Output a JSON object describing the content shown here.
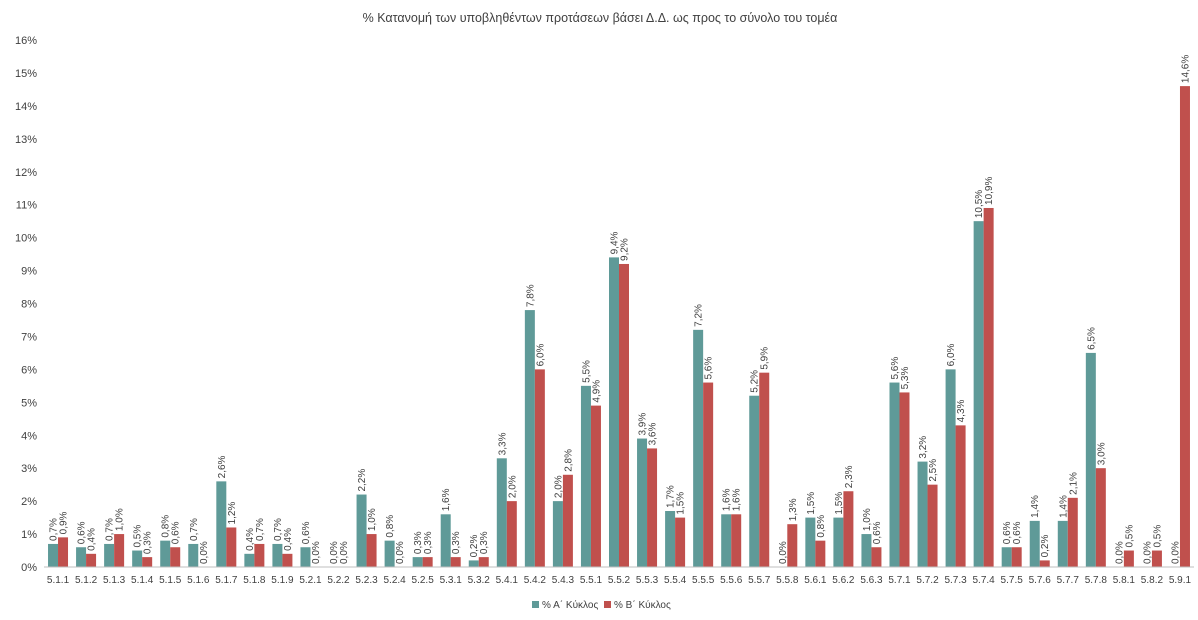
{
  "chart_data": {
    "type": "bar",
    "title": "% Κατανομή των υποβληθέντων προτάσεων βάσει Δ.Δ. ως προς το σύνολο του τομέα",
    "xlabel": "",
    "ylabel": "",
    "ylim": [
      0,
      16
    ],
    "yticks": [
      "0%",
      "1%",
      "2%",
      "3%",
      "4%",
      "5%",
      "6%",
      "7%",
      "8%",
      "9%",
      "10%",
      "11%",
      "12%",
      "13%",
      "14%",
      "15%",
      "16%"
    ],
    "grid": false,
    "legend_position": "bottom",
    "categories": [
      "5.1.1",
      "5.1.2",
      "5.1.3",
      "5.1.4",
      "5.1.5",
      "5.1.6",
      "5.1.7",
      "5.1.8",
      "5.1.9",
      "5.2.1",
      "5.2.2",
      "5.2.3",
      "5.2.4",
      "5.2.5",
      "5.3.1",
      "5.3.2",
      "5.4.1",
      "5.4.2",
      "5.4.3",
      "5.5.1",
      "5.5.2",
      "5.5.3",
      "5.5.4",
      "5.5.5",
      "5.5.6",
      "5.5.7",
      "5.5.8",
      "5.6.1",
      "5.6.2",
      "5.6.3",
      "5.7.1",
      "5.7.2",
      "5.7.3",
      "5.7.4",
      "5.7.5",
      "5.7.6",
      "5.7.7",
      "5.7.8",
      "5.8.1",
      "5.8.2",
      "5.9.1"
    ],
    "series": [
      {
        "name": "% Α΄ Κύκλος",
        "color": "#5f9a98",
        "values": [
          0.7,
          0.6,
          0.7,
          0.5,
          0.8,
          0.7,
          2.6,
          0.4,
          0.7,
          0.6,
          0.0,
          2.2,
          0.8,
          0.3,
          1.6,
          0.2,
          3.3,
          7.8,
          2.0,
          5.5,
          9.4,
          3.9,
          1.7,
          7.2,
          1.6,
          5.2,
          0.0,
          1.5,
          1.5,
          1.0,
          5.6,
          3.2,
          6.0,
          10.5,
          0.6,
          1.4,
          1.4,
          6.5,
          0.0,
          0.0,
          0.0
        ],
        "labels": [
          "0,7%",
          "0,6%",
          "0,7%",
          "0,5%",
          "0,8%",
          "0,7%",
          "2,6%",
          "0,4%",
          "0,7%",
          "0,6%",
          "0,0%",
          "2,2%",
          "0,8%",
          "0,3%",
          "1,6%",
          "0,2%",
          "3,3%",
          "7,8%",
          "2,0%",
          "5,5%",
          "9,4%",
          "3,9%",
          "1,7%",
          "7,2%",
          "1,6%",
          "5,2%",
          "0,0%",
          "1,5%",
          "1,5%",
          "1,0%",
          "5,6%",
          "3,2%",
          "6,0%",
          "10,5%",
          "0,6%",
          "1,4%",
          "1,4%",
          "6,5%",
          "0,0%",
          "0,0%",
          "0,0%"
        ]
      },
      {
        "name": "% Β΄ Κύκλος",
        "color": "#c0504d",
        "values": [
          0.9,
          0.4,
          1.0,
          0.3,
          0.6,
          0.0,
          1.2,
          0.7,
          0.4,
          0.0,
          0.0,
          1.0,
          0.0,
          0.3,
          0.3,
          0.3,
          2.0,
          6.0,
          2.8,
          4.9,
          9.2,
          3.6,
          1.5,
          5.6,
          1.6,
          5.9,
          1.3,
          0.8,
          2.3,
          0.6,
          5.3,
          2.5,
          4.3,
          10.9,
          0.6,
          0.2,
          2.1,
          3.0,
          0.5,
          0.5,
          14.6
        ],
        "labels": [
          "0,9%",
          "0,4%",
          "1,0%",
          "0,3%",
          "0,6%",
          "0,0%",
          "1,2%",
          "0,7%",
          "0,4%",
          "0,0%",
          "0,0%",
          "1,0%",
          "0,0%",
          "0,3%",
          "0,3%",
          "0,3%",
          "2,0%",
          "6,0%",
          "2,8%",
          "4,9%",
          "9,2%",
          "3,6%",
          "1,5%",
          "5,6%",
          "1,6%",
          "5,9%",
          "1,3%",
          "0,8%",
          "2,3%",
          "0,6%",
          "5,3%",
          "2,5%",
          "4,3%",
          "10,9%",
          "0,6%",
          "0,2%",
          "2,1%",
          "3,0%",
          "0,5%",
          "0,5%",
          "14,6%"
        ]
      }
    ]
  }
}
